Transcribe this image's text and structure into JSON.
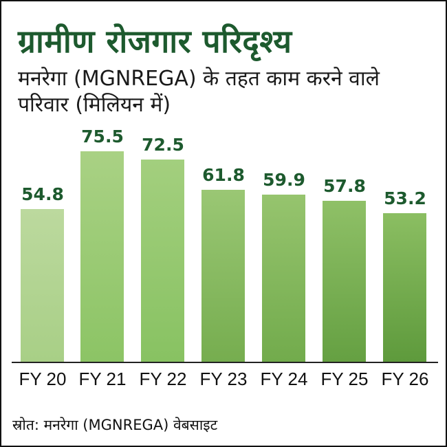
{
  "title": "ग्रामीण रोजगार परिदृश्य",
  "subtitle": "मनरेगा (MGNREGA) के तहत काम करने वाले परिवार (मिलियन में)",
  "source": "स्रोत: मनरेगा (MGNREGA) वेबसाइट",
  "colors": {
    "title": "#1d5a2e",
    "value_labels": "#1d5a2e",
    "bar_light": "#b8d898",
    "bar_dark": "#5e9a3c"
  },
  "chart_data": {
    "type": "bar",
    "title": "ग्रामीण रोजगार परिदृश्य",
    "subtitle": "मनरेगा (MGNREGA) के तहत काम करने वाले परिवार (मिलियन में)",
    "xlabel": "",
    "ylabel": "",
    "categories": [
      "FY 20",
      "FY 21",
      "FY 22",
      "FY 23",
      "FY 24",
      "FY 25",
      "FY 26"
    ],
    "values": [
      54.8,
      75.5,
      72.5,
      61.8,
      59.9,
      57.8,
      53.2
    ],
    "value_labels": [
      "54.8",
      "75.5",
      "72.5",
      "61.8",
      "59.9",
      "57.8",
      "53.2"
    ],
    "grid": false,
    "legend": null,
    "source": "स्रोत: मनरेगा (MGNREGA) वेबसाइट"
  }
}
